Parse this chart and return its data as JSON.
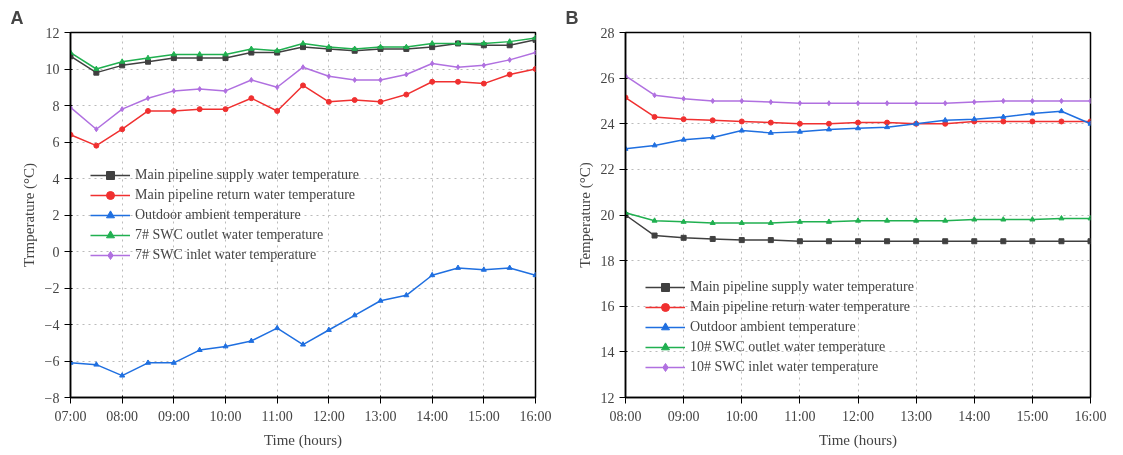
{
  "chart_data": [
    {
      "type": "line",
      "title": "A",
      "xlabel": "Time (hours)",
      "ylabel": "Trmperature (°C)",
      "x": [
        7,
        7.5,
        8,
        8.5,
        9,
        9.5,
        10,
        10.5,
        11,
        11.5,
        12,
        12.5,
        13,
        13.5,
        14,
        14.5,
        15,
        15.5,
        16
      ],
      "xlim": [
        7,
        16
      ],
      "ylim": [
        -8,
        12
      ],
      "xticks": [
        {
          "value": 7,
          "label": "07:00"
        },
        {
          "value": 8,
          "label": "08:00"
        },
        {
          "value": 9,
          "label": "09:00"
        },
        {
          "value": 10,
          "label": "10:00"
        },
        {
          "value": 11,
          "label": "11:00"
        },
        {
          "value": 12,
          "label": "12:00"
        },
        {
          "value": 13,
          "label": "13:00"
        },
        {
          "value": 14,
          "label": "14:00"
        },
        {
          "value": 15,
          "label": "15:00"
        },
        {
          "value": 16,
          "label": "16:00"
        }
      ],
      "yticks": [
        -8,
        -6,
        -4,
        -2,
        0,
        2,
        4,
        6,
        8,
        10,
        12
      ],
      "grid": true,
      "legend": "left",
      "series": [
        {
          "name": "Main pipeline supply water temperature",
          "color": "#404040",
          "marker": "square",
          "values": [
            10.7,
            9.8,
            10.2,
            10.4,
            10.6,
            10.6,
            10.6,
            10.9,
            10.9,
            11.2,
            11.1,
            11.0,
            11.1,
            11.1,
            11.2,
            11.4,
            11.3,
            11.3,
            11.6
          ]
        },
        {
          "name": "Main pipeline return water temperature",
          "color": "#f03030",
          "marker": "circle",
          "values": [
            6.4,
            5.8,
            6.7,
            7.7,
            7.7,
            7.8,
            7.8,
            8.4,
            7.7,
            9.1,
            8.2,
            8.3,
            8.2,
            8.6,
            9.3,
            9.3,
            9.2,
            9.7,
            10.0
          ]
        },
        {
          "name": "Outdoor ambient temperature",
          "color": "#1f6fe0",
          "marker": "triangle",
          "values": [
            -6.1,
            -6.2,
            -6.8,
            -6.1,
            -6.1,
            -5.4,
            -5.2,
            -4.9,
            -4.2,
            -5.1,
            -4.3,
            -3.5,
            -2.7,
            -2.4,
            -1.3,
            -0.9,
            -1.0,
            -0.9,
            -1.3
          ]
        },
        {
          "name": "7# SWC outlet water temperature",
          "color": "#20b050",
          "marker": "triangle",
          "values": [
            10.9,
            10.0,
            10.4,
            10.6,
            10.8,
            10.8,
            10.8,
            11.1,
            11.0,
            11.4,
            11.2,
            11.1,
            11.2,
            11.2,
            11.4,
            11.4,
            11.4,
            11.5,
            11.7
          ]
        },
        {
          "name": "7# SWC inlet water temperature",
          "color": "#b070e0",
          "marker": "diamond",
          "values": [
            7.9,
            6.7,
            7.8,
            8.4,
            8.8,
            8.9,
            8.8,
            9.4,
            9.0,
            10.1,
            9.6,
            9.4,
            9.4,
            9.7,
            10.3,
            10.1,
            10.2,
            10.5,
            10.9
          ]
        }
      ]
    },
    {
      "type": "line",
      "title": "B",
      "xlabel": "Time (hours)",
      "ylabel": "Temperature (°C)",
      "x": [
        8,
        8.5,
        9,
        9.5,
        10,
        10.5,
        11,
        11.5,
        12,
        12.5,
        13,
        13.5,
        14,
        14.5,
        15,
        15.5,
        16
      ],
      "xlim": [
        8,
        16
      ],
      "ylim": [
        12,
        28
      ],
      "xticks": [
        {
          "value": 8,
          "label": "08:00"
        },
        {
          "value": 9,
          "label": "09:00"
        },
        {
          "value": 10,
          "label": "10:00"
        },
        {
          "value": 11,
          "label": "11:00"
        },
        {
          "value": 12,
          "label": "12:00"
        },
        {
          "value": 13,
          "label": "13:00"
        },
        {
          "value": 14,
          "label": "14:00"
        },
        {
          "value": 15,
          "label": "15:00"
        },
        {
          "value": 16,
          "label": "16:00"
        }
      ],
      "yticks": [
        12,
        14,
        16,
        18,
        20,
        22,
        24,
        26,
        28
      ],
      "grid": true,
      "legend": "bottom left",
      "series": [
        {
          "name": "Main pipeline supply water temperature",
          "color": "#404040",
          "marker": "square",
          "values": [
            20.0,
            19.1,
            19.0,
            18.95,
            18.9,
            18.9,
            18.85,
            18.85,
            18.85,
            18.85,
            18.85,
            18.85,
            18.85,
            18.85,
            18.85,
            18.85,
            18.85
          ]
        },
        {
          "name": "Main pipeline return water temperature",
          "color": "#f03030",
          "marker": "circle",
          "values": [
            25.15,
            24.3,
            24.2,
            24.15,
            24.1,
            24.05,
            24.0,
            24.0,
            24.05,
            24.05,
            24.0,
            24.0,
            24.1,
            24.1,
            24.1,
            24.1,
            24.1
          ]
        },
        {
          "name": "Outdoor ambient temperature",
          "color": "#1f6fe0",
          "marker": "triangle",
          "values": [
            22.9,
            23.05,
            23.3,
            23.4,
            23.7,
            23.6,
            23.65,
            23.75,
            23.8,
            23.85,
            24.0,
            24.15,
            24.2,
            24.3,
            24.45,
            24.55,
            24.0
          ]
        },
        {
          "name": "10# SWC outlet water temperature",
          "color": "#20b050",
          "marker": "triangle",
          "values": [
            20.1,
            19.75,
            19.7,
            19.65,
            19.65,
            19.65,
            19.7,
            19.7,
            19.75,
            19.75,
            19.75,
            19.75,
            19.8,
            19.8,
            19.8,
            19.85,
            19.85
          ]
        },
        {
          "name": "10# SWC inlet water temperature",
          "color": "#b070e0",
          "marker": "diamond",
          "values": [
            26.1,
            25.25,
            25.1,
            25.0,
            25.0,
            24.95,
            24.9,
            24.9,
            24.9,
            24.9,
            24.9,
            24.9,
            24.95,
            25.0,
            25.0,
            25.0,
            25.0
          ]
        }
      ]
    }
  ]
}
